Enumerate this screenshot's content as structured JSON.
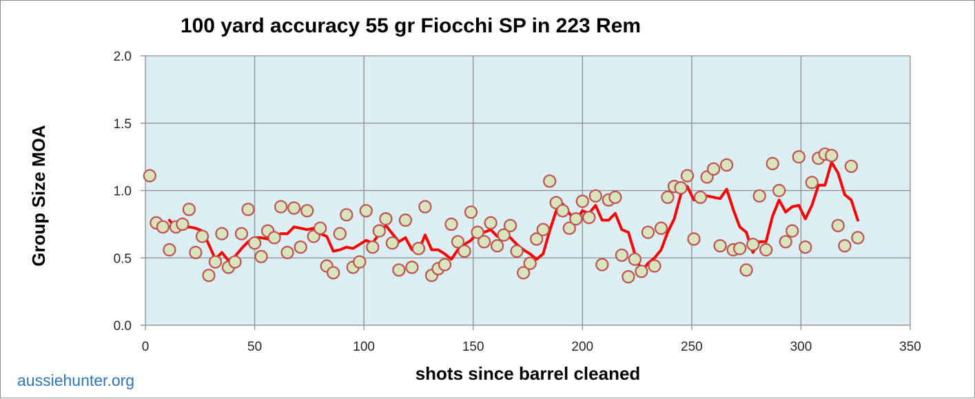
{
  "chart_data": {
    "type": "scatter",
    "title": "100 yard accuracy 55 gr Fiocchi SP in 223 Rem",
    "xlabel": "shots since barrel cleaned",
    "ylabel": "Group Size MOA",
    "xlim": [
      0,
      350
    ],
    "ylim": [
      0.0,
      2.0
    ],
    "x_ticks": [
      0,
      50,
      100,
      150,
      200,
      250,
      300,
      350
    ],
    "y_ticks": [
      0.0,
      0.5,
      1.0,
      1.5,
      2.0
    ],
    "x_tick_labels": [
      "0",
      "50",
      "100",
      "150",
      "200",
      "250",
      "300",
      "350"
    ],
    "y_tick_labels": [
      "0.0",
      "0.5",
      "1.0",
      "1.5",
      "2.0"
    ],
    "grid": true,
    "legend": "none",
    "colors": {
      "plot_background": "#daeef3",
      "marker_fill": "#d7e4bd",
      "marker_edge": "#c0504d",
      "trend_line": "#ff0000",
      "grid": "#8c8c8c",
      "watermark": "#2e75b6"
    },
    "series": [
      {
        "points": [
          [
            2,
            1.11
          ],
          [
            5,
            0.76
          ],
          [
            8,
            0.73
          ],
          [
            11,
            0.56
          ],
          [
            14,
            0.73
          ],
          [
            17,
            0.75
          ],
          [
            20,
            0.86
          ],
          [
            23,
            0.54
          ],
          [
            26,
            0.66
          ],
          [
            29,
            0.37
          ],
          [
            32,
            0.47
          ],
          [
            35,
            0.68
          ],
          [
            38,
            0.43
          ],
          [
            41,
            0.47
          ],
          [
            44,
            0.68
          ],
          [
            47,
            0.86
          ],
          [
            50,
            0.61
          ],
          [
            53,
            0.51
          ],
          [
            56,
            0.7
          ],
          [
            59,
            0.65
          ],
          [
            62,
            0.88
          ],
          [
            65,
            0.54
          ],
          [
            68,
            0.87
          ],
          [
            71,
            0.58
          ],
          [
            74,
            0.85
          ],
          [
            77,
            0.66
          ],
          [
            80,
            0.72
          ],
          [
            83,
            0.44
          ],
          [
            86,
            0.39
          ],
          [
            89,
            0.68
          ],
          [
            92,
            0.82
          ],
          [
            95,
            0.43
          ],
          [
            98,
            0.47
          ],
          [
            101,
            0.85
          ],
          [
            104,
            0.58
          ],
          [
            107,
            0.7
          ],
          [
            110,
            0.79
          ],
          [
            113,
            0.61
          ],
          [
            116,
            0.41
          ],
          [
            119,
            0.78
          ],
          [
            122,
            0.43
          ],
          [
            125,
            0.57
          ],
          [
            128,
            0.88
          ],
          [
            131,
            0.37
          ],
          [
            134,
            0.42
          ],
          [
            137,
            0.45
          ],
          [
            140,
            0.75
          ],
          [
            143,
            0.62
          ],
          [
            146,
            0.55
          ],
          [
            149,
            0.84
          ],
          [
            152,
            0.69
          ],
          [
            155,
            0.62
          ],
          [
            158,
            0.76
          ],
          [
            161,
            0.59
          ],
          [
            164,
            0.67
          ],
          [
            167,
            0.74
          ],
          [
            170,
            0.55
          ],
          [
            173,
            0.39
          ],
          [
            176,
            0.46
          ],
          [
            179,
            0.64
          ],
          [
            182,
            0.71
          ],
          [
            185,
            1.07
          ],
          [
            188,
            0.91
          ],
          [
            191,
            0.85
          ],
          [
            194,
            0.72
          ],
          [
            197,
            0.79
          ],
          [
            200,
            0.92
          ],
          [
            203,
            0.8
          ],
          [
            206,
            0.96
          ],
          [
            209,
            0.45
          ],
          [
            212,
            0.93
          ],
          [
            215,
            0.95
          ],
          [
            218,
            0.52
          ],
          [
            221,
            0.36
          ],
          [
            224,
            0.49
          ],
          [
            227,
            0.4
          ],
          [
            230,
            0.69
          ],
          [
            233,
            0.44
          ],
          [
            236,
            0.72
          ],
          [
            239,
            0.95
          ],
          [
            242,
            1.03
          ],
          [
            245,
            1.02
          ],
          [
            248,
            1.11
          ],
          [
            251,
            0.64
          ],
          [
            254,
            0.95
          ],
          [
            257,
            1.1
          ],
          [
            260,
            1.16
          ],
          [
            263,
            0.59
          ],
          [
            266,
            1.19
          ],
          [
            269,
            0.56
          ],
          [
            272,
            0.57
          ],
          [
            275,
            0.41
          ],
          [
            278,
            0.6
          ],
          [
            281,
            0.96
          ],
          [
            284,
            0.56
          ],
          [
            287,
            1.2
          ],
          [
            290,
            1.0
          ],
          [
            293,
            0.62
          ],
          [
            296,
            0.7
          ],
          [
            299,
            1.25
          ],
          [
            302,
            0.58
          ],
          [
            305,
            1.06
          ],
          [
            308,
            1.24
          ],
          [
            311,
            1.27
          ],
          [
            314,
            1.26
          ],
          [
            317,
            0.74
          ],
          [
            320,
            0.59
          ],
          [
            323,
            1.18
          ],
          [
            326,
            0.65
          ]
        ]
      }
    ],
    "trend_line": {
      "type": "moving_average",
      "points": [
        [
          11,
          0.78
        ],
        [
          14,
          0.72
        ],
        [
          17,
          0.72
        ],
        [
          20,
          0.73
        ],
        [
          23,
          0.72
        ],
        [
          26,
          0.7
        ],
        [
          29,
          0.6
        ],
        [
          32,
          0.49
        ],
        [
          35,
          0.54
        ],
        [
          38,
          0.48
        ],
        [
          41,
          0.51
        ],
        [
          44,
          0.57
        ],
        [
          47,
          0.62
        ],
        [
          50,
          0.65
        ],
        [
          53,
          0.65
        ],
        [
          56,
          0.64
        ],
        [
          59,
          0.65
        ],
        [
          62,
          0.68
        ],
        [
          65,
          0.68
        ],
        [
          68,
          0.73
        ],
        [
          71,
          0.72
        ],
        [
          74,
          0.71
        ],
        [
          77,
          0.72
        ],
        [
          80,
          0.68
        ],
        [
          83,
          0.66
        ],
        [
          86,
          0.55
        ],
        [
          89,
          0.56
        ],
        [
          92,
          0.58
        ],
        [
          95,
          0.57
        ],
        [
          98,
          0.6
        ],
        [
          101,
          0.63
        ],
        [
          104,
          0.61
        ],
        [
          107,
          0.68
        ],
        [
          110,
          0.74
        ],
        [
          113,
          0.68
        ],
        [
          116,
          0.62
        ],
        [
          119,
          0.65
        ],
        [
          122,
          0.56
        ],
        [
          125,
          0.55
        ],
        [
          128,
          0.67
        ],
        [
          131,
          0.56
        ],
        [
          134,
          0.56
        ],
        [
          137,
          0.53
        ],
        [
          140,
          0.49
        ],
        [
          143,
          0.56
        ],
        [
          146,
          0.6
        ],
        [
          149,
          0.63
        ],
        [
          152,
          0.69
        ],
        [
          155,
          0.69
        ],
        [
          158,
          0.71
        ],
        [
          161,
          0.66
        ],
        [
          164,
          0.67
        ],
        [
          167,
          0.65
        ],
        [
          170,
          0.6
        ],
        [
          173,
          0.56
        ],
        [
          176,
          0.53
        ],
        [
          179,
          0.49
        ],
        [
          182,
          0.53
        ],
        [
          185,
          0.7
        ],
        [
          188,
          0.85
        ],
        [
          191,
          0.9
        ],
        [
          194,
          0.83
        ],
        [
          197,
          0.78
        ],
        [
          200,
          0.85
        ],
        [
          203,
          0.83
        ],
        [
          206,
          0.89
        ],
        [
          209,
          0.78
        ],
        [
          212,
          0.78
        ],
        [
          215,
          0.83
        ],
        [
          218,
          0.71
        ],
        [
          221,
          0.69
        ],
        [
          224,
          0.53
        ],
        [
          227,
          0.4
        ],
        [
          230,
          0.46
        ],
        [
          233,
          0.5
        ],
        [
          236,
          0.56
        ],
        [
          239,
          0.69
        ],
        [
          242,
          0.79
        ],
        [
          245,
          0.97
        ],
        [
          248,
          1.03
        ],
        [
          251,
          0.93
        ],
        [
          254,
          0.95
        ],
        [
          257,
          0.96
        ],
        [
          260,
          0.95
        ],
        [
          263,
          0.94
        ],
        [
          266,
          1.01
        ],
        [
          269,
          0.86
        ],
        [
          272,
          0.73
        ],
        [
          275,
          0.69
        ],
        [
          278,
          0.54
        ],
        [
          281,
          0.62
        ],
        [
          284,
          0.62
        ],
        [
          287,
          0.81
        ],
        [
          290,
          0.93
        ],
        [
          293,
          0.84
        ],
        [
          296,
          0.88
        ],
        [
          299,
          0.89
        ],
        [
          302,
          0.79
        ],
        [
          305,
          0.89
        ],
        [
          308,
          1.04
        ],
        [
          311,
          1.04
        ],
        [
          314,
          1.21
        ],
        [
          317,
          1.13
        ],
        [
          320,
          0.97
        ],
        [
          323,
          0.93
        ],
        [
          326,
          0.78
        ]
      ]
    }
  },
  "watermark": "aussiehunter.org"
}
